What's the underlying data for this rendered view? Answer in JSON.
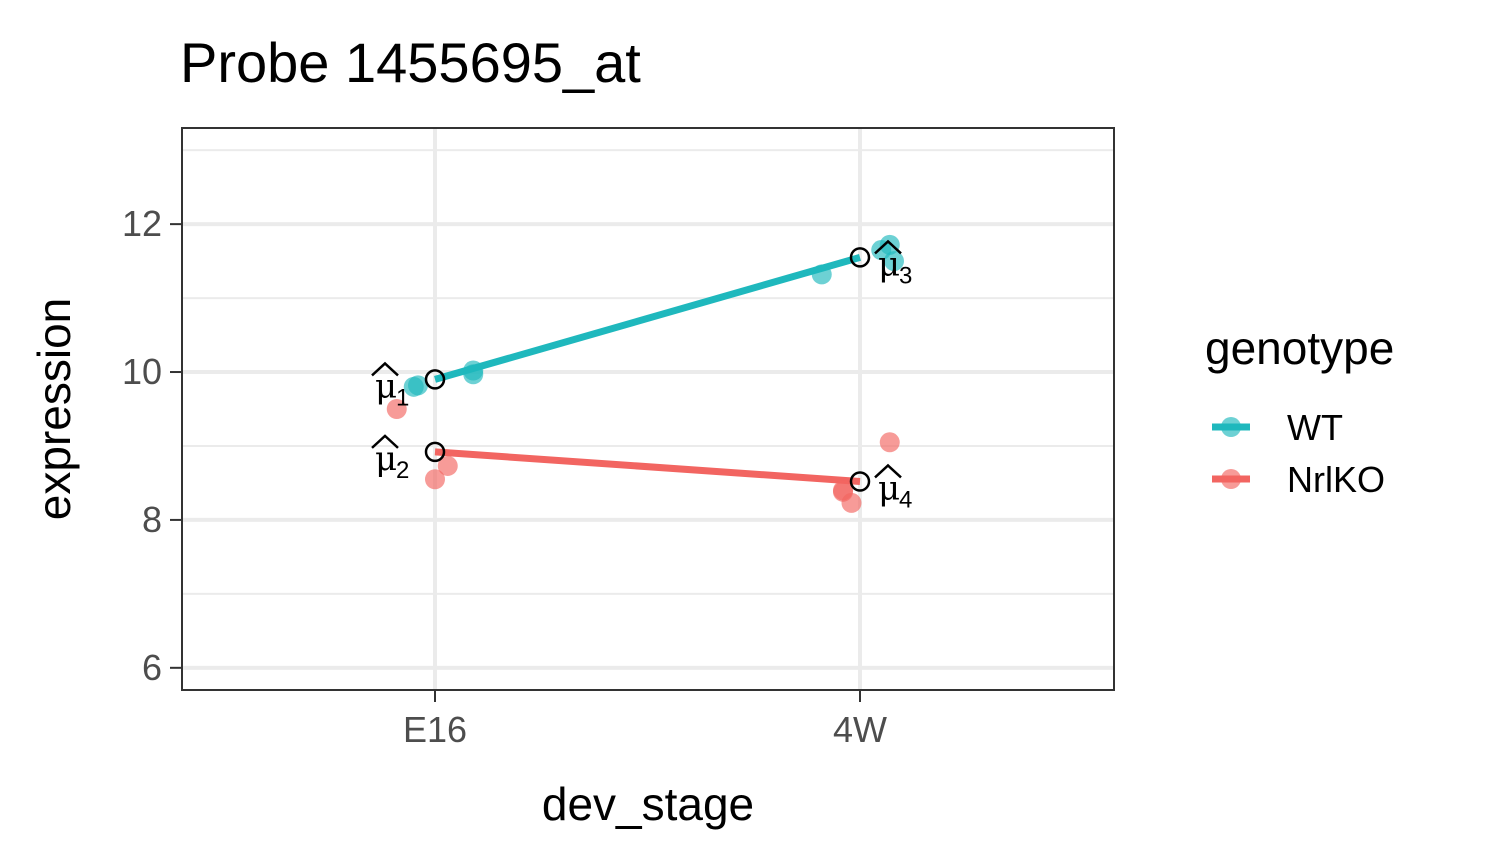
{
  "chart_data": {
    "type": "scatter",
    "title": "Probe 1455695_at",
    "xlabel": "dev_stage",
    "ylabel": "expression",
    "categories": [
      "E16",
      "4W"
    ],
    "ylim": [
      5.7,
      13.3
    ],
    "yticks": [
      6,
      8,
      10,
      12
    ],
    "grid": true,
    "legend": {
      "title": "genotype",
      "position": "right"
    },
    "series": [
      {
        "name": "WT",
        "color": "#1fb8bd",
        "means": [
          9.9,
          11.55
        ],
        "points": [
          {
            "x": "E16",
            "jitter": -0.05,
            "y": 9.8
          },
          {
            "x": "E16",
            "jitter": -0.04,
            "y": 9.82
          },
          {
            "x": "E16",
            "jitter": 0.09,
            "y": 10.02
          },
          {
            "x": "E16",
            "jitter": 0.09,
            "y": 9.97
          },
          {
            "x": "4W",
            "jitter": -0.09,
            "y": 11.32
          },
          {
            "x": "4W",
            "jitter": 0.05,
            "y": 11.65
          },
          {
            "x": "4W",
            "jitter": 0.07,
            "y": 11.72
          },
          {
            "x": "4W",
            "jitter": 0.08,
            "y": 11.5
          }
        ]
      },
      {
        "name": "NrlKO",
        "color": "#f26561",
        "means": [
          8.92,
          8.52
        ],
        "points": [
          {
            "x": "E16",
            "jitter": -0.09,
            "y": 9.5
          },
          {
            "x": "E16",
            "jitter": 0.0,
            "y": 8.55
          },
          {
            "x": "E16",
            "jitter": 0.03,
            "y": 8.73
          },
          {
            "x": "4W",
            "jitter": -0.04,
            "y": 8.38
          },
          {
            "x": "4W",
            "jitter": -0.04,
            "y": 8.4
          },
          {
            "x": "4W",
            "jitter": -0.02,
            "y": 8.23
          },
          {
            "x": "4W",
            "jitter": 0.07,
            "y": 9.05
          }
        ]
      }
    ],
    "annotations": [
      {
        "symbol": "μ",
        "subscript": "1",
        "x": "E16",
        "y": 9.9,
        "side": "left"
      },
      {
        "symbol": "μ",
        "subscript": "2",
        "x": "E16",
        "y": 8.92,
        "side": "left"
      },
      {
        "symbol": "μ",
        "subscript": "3",
        "x": "4W",
        "y": 11.55,
        "side": "right"
      },
      {
        "symbol": "μ",
        "subscript": "4",
        "x": "4W",
        "y": 8.52,
        "side": "right"
      }
    ]
  }
}
